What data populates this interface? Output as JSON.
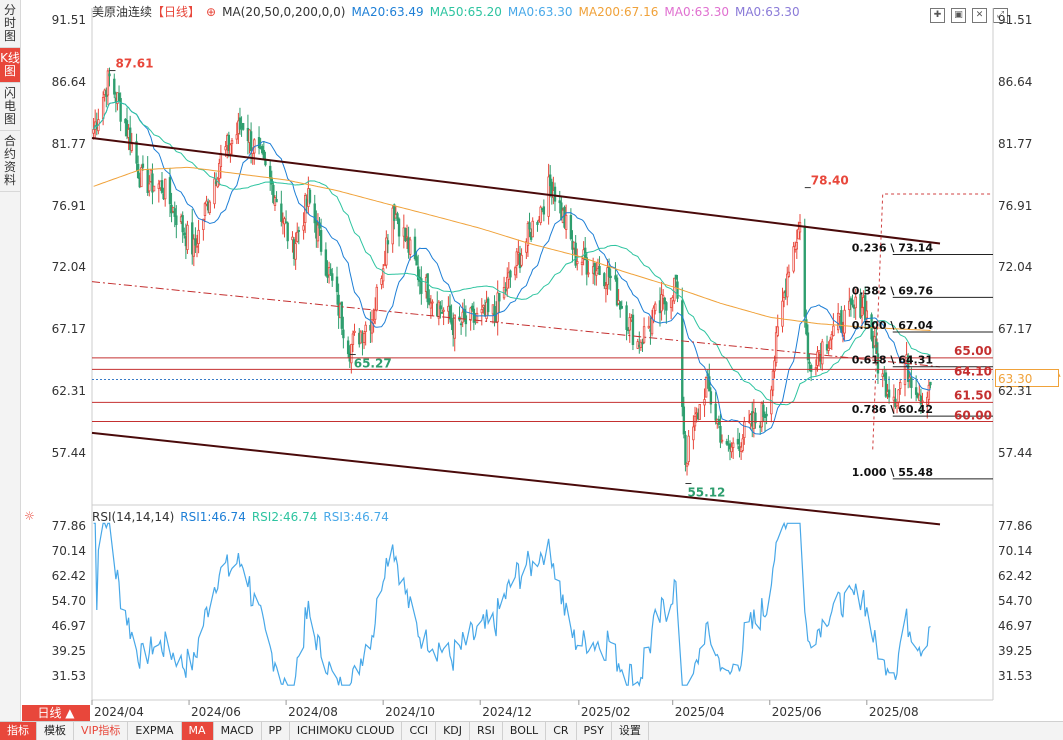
{
  "left_tabs": [
    {
      "label": "分时图",
      "active": false
    },
    {
      "label": "K线图",
      "active": true
    },
    {
      "label": "闪电图",
      "active": false
    },
    {
      "label": "合约资料",
      "active": false
    }
  ],
  "header": {
    "title": "美原油连续",
    "period": "【日线】",
    "ma_setting": "MA(20,50,0,200,0,0)",
    "ma_values": [
      {
        "text": "MA20:63.49",
        "color": "#1e7fd6"
      },
      {
        "text": "MA50:65.20",
        "color": "#2ec4a0"
      },
      {
        "text": "MA0:63.30",
        "color": "#48a8e8"
      },
      {
        "text": "MA200:67.16",
        "color": "#f0a23a"
      },
      {
        "text": "MA0:63.30",
        "color": "#e070d0"
      },
      {
        "text": "MA0:63.30",
        "color": "#8a7ad8"
      }
    ]
  },
  "price_axis": [
    "91.51",
    "86.64",
    "81.77",
    "76.91",
    "72.04",
    "67.17",
    "62.31",
    "57.44"
  ],
  "rsi_axis": [
    "77.86",
    "70.14",
    "62.42",
    "54.70",
    "46.97",
    "39.25",
    "31.53"
  ],
  "x_axis": [
    "2024/04",
    "2024/06",
    "2024/08",
    "2024/10",
    "2024/12",
    "2025/02",
    "2025/04",
    "2025/06",
    "2025/08"
  ],
  "annotations": {
    "high": "87.61",
    "high2": "78.40",
    "low1": "65.27",
    "low2": "55.12",
    "level_65": "65.00",
    "level_615": "61.50",
    "level_600": "60.00",
    "level_641": "64.10"
  },
  "fib": [
    {
      "label": "0.236 \\ 73.14"
    },
    {
      "label": "0.382 \\ 69.76"
    },
    {
      "label": "0.500 \\ 67.04"
    },
    {
      "label": "0.618 \\ 64.31"
    },
    {
      "label": "0.786 \\ 60.42"
    },
    {
      "label": "1.000 \\ 55.48"
    }
  ],
  "current_price": "63.30",
  "rsi_header": {
    "setting": "RSI(14,14,14)",
    "values": [
      {
        "text": "RSI1:46.74",
        "color": "#1e7fd6"
      },
      {
        "text": "RSI2:46.74",
        "color": "#2ec4a0"
      },
      {
        "text": "RSI3:46.74",
        "color": "#48a8e8"
      }
    ]
  },
  "period_button": "日线 ▲",
  "bottom_tabs": [
    "指标",
    "模板",
    "VIP指标",
    "EXPMA",
    "MA",
    "MACD",
    "PP",
    "ICHIMOKU CLOUD",
    "CCI",
    "KDJ",
    "RSI",
    "BOLL",
    "CR",
    "PSY",
    "设置"
  ],
  "colors": {
    "up": "#e8473b",
    "down": "#2e9e6e",
    "ma20": "#1e7fd6",
    "ma50": "#2ec4a0",
    "ma200": "#f0a23a",
    "rsi": "#48a8e8",
    "channel": "#4a0a0a"
  },
  "chart_data": {
    "type": "candlestick",
    "title": "美原油连续 日线",
    "ylim": [
      55.0,
      92.0
    ],
    "rsi_ylim": [
      28,
      80
    ],
    "anchors": [
      {
        "d": "2024-04-02",
        "v": 83.0
      },
      {
        "d": "2024-04-10",
        "v": 86.5
      },
      {
        "d": "2024-04-12",
        "v": 87.0
      },
      {
        "d": "2024-04-22",
        "v": 83.5
      },
      {
        "d": "2024-05-02",
        "v": 79.0
      },
      {
        "d": "2024-05-15",
        "v": 78.5
      },
      {
        "d": "2024-06-04",
        "v": 73.5
      },
      {
        "d": "2024-06-20",
        "v": 80.5
      },
      {
        "d": "2024-07-05",
        "v": 83.5
      },
      {
        "d": "2024-07-25",
        "v": 78.0
      },
      {
        "d": "2024-08-05",
        "v": 73.5
      },
      {
        "d": "2024-08-15",
        "v": 77.5
      },
      {
        "d": "2024-09-10",
        "v": 65.8
      },
      {
        "d": "2024-09-25",
        "v": 68.5
      },
      {
        "d": "2024-10-07",
        "v": 77.0
      },
      {
        "d": "2024-10-25",
        "v": 71.0
      },
      {
        "d": "2024-11-15",
        "v": 67.5
      },
      {
        "d": "2024-12-10",
        "v": 68.5
      },
      {
        "d": "2025-01-15",
        "v": 78.8
      },
      {
        "d": "2025-01-30",
        "v": 73.0
      },
      {
        "d": "2025-02-20",
        "v": 71.5
      },
      {
        "d": "2025-03-10",
        "v": 66.2
      },
      {
        "d": "2025-03-25",
        "v": 69.0
      },
      {
        "d": "2025-04-03",
        "v": 71.0
      },
      {
        "d": "2025-04-09",
        "v": 57.0
      },
      {
        "d": "2025-04-22",
        "v": 63.0
      },
      {
        "d": "2025-05-05",
        "v": 57.5
      },
      {
        "d": "2025-05-30",
        "v": 61.0
      },
      {
        "d": "2025-06-13",
        "v": 72.5
      },
      {
        "d": "2025-06-20",
        "v": 75.5
      },
      {
        "d": "2025-06-25",
        "v": 64.5
      },
      {
        "d": "2025-07-10",
        "v": 67.0
      },
      {
        "d": "2025-07-30",
        "v": 69.5
      },
      {
        "d": "2025-08-10",
        "v": 63.5
      },
      {
        "d": "2025-08-20",
        "v": 62.0
      },
      {
        "d": "2025-08-25",
        "v": 64.5
      },
      {
        "d": "2025-09-05",
        "v": 62.0
      },
      {
        "d": "2025-09-10",
        "v": 63.3
      }
    ],
    "ma200_anchors": [
      {
        "d": "2024-04-02",
        "v": 78.5
      },
      {
        "d": "2024-05-01",
        "v": 79.8
      },
      {
        "d": "2024-06-01",
        "v": 80.0
      },
      {
        "d": "2024-07-01",
        "v": 79.5
      },
      {
        "d": "2024-08-01",
        "v": 79.0
      },
      {
        "d": "2024-09-01",
        "v": 78.2
      },
      {
        "d": "2024-10-01",
        "v": 77.2
      },
      {
        "d": "2024-11-01",
        "v": 76.2
      },
      {
        "d": "2024-12-01",
        "v": 75.2
      },
      {
        "d": "2025-01-01",
        "v": 74.0
      },
      {
        "d": "2025-02-01",
        "v": 73.0
      },
      {
        "d": "2025-03-01",
        "v": 71.8
      },
      {
        "d": "2025-04-01",
        "v": 70.6
      },
      {
        "d": "2025-05-01",
        "v": 69.3
      },
      {
        "d": "2025-06-01",
        "v": 68.2
      },
      {
        "d": "2025-07-01",
        "v": 67.7
      },
      {
        "d": "2025-08-01",
        "v": 67.4
      },
      {
        "d": "2025-09-10",
        "v": 67.16
      }
    ],
    "ma20_last": 63.49,
    "ma50_last": 65.2,
    "rsi_last": 46.74,
    "swing_high": {
      "d": "2024-04-12",
      "v": 87.61
    },
    "swing_high2": {
      "d": "2025-06-23",
      "v": 78.4
    },
    "swing_low1": {
      "d": "2024-09-10",
      "v": 65.27
    },
    "swing_low2": {
      "d": "2025-04-09",
      "v": 55.12
    },
    "fib_levels": [
      73.14,
      69.76,
      67.04,
      64.31,
      60.42,
      55.48
    ],
    "horizontal_levels": [
      65.0,
      64.1,
      61.5,
      60.0
    ],
    "dotted_level": 63.3,
    "channel_upper": [
      {
        "d": "2024-04-01",
        "v": 82.3
      },
      {
        "d": "2025-09-16",
        "v": 74.0
      }
    ],
    "channel_lower": [
      {
        "d": "2024-04-01",
        "v": 59.1
      },
      {
        "d": "2025-09-16",
        "v": 51.9
      }
    ],
    "mid_dashdot": [
      {
        "d": "2024-04-01",
        "v": 71.0
      },
      {
        "d": "2025-09-16",
        "v": 64.3
      }
    ],
    "proj_box": {
      "d1": "2025-08-11",
      "d2": "2025-09-12",
      "hi": 77.9,
      "lo": 57.8
    }
  }
}
